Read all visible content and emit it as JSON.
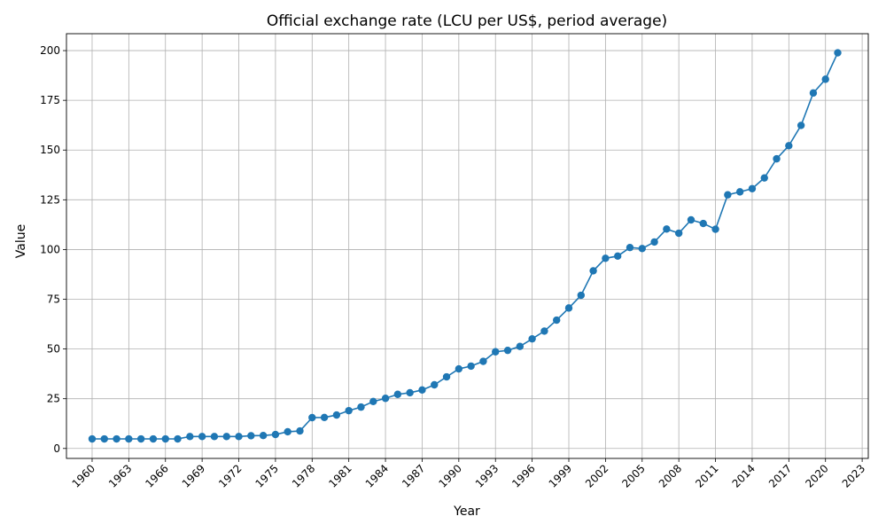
{
  "chart_data": {
    "type": "line",
    "title": "Official exchange rate (LCU per US$, period average)",
    "xlabel": "Year",
    "ylabel": "Value",
    "xlim": [
      1957.9,
      2023.5
    ],
    "ylim": [
      -5,
      208.5
    ],
    "grid": true,
    "color": "#1f77b4",
    "x_ticks": [
      1960,
      1963,
      1966,
      1969,
      1972,
      1975,
      1978,
      1981,
      1984,
      1987,
      1990,
      1993,
      1996,
      1999,
      2002,
      2005,
      2008,
      2011,
      2014,
      2017,
      2020,
      2023
    ],
    "y_ticks": [
      0,
      25,
      50,
      75,
      100,
      125,
      150,
      175,
      200
    ],
    "series": [
      {
        "x": [
          1960,
          1961,
          1962,
          1963,
          1964,
          1965,
          1966,
          1967,
          1968,
          1969,
          1970,
          1971,
          1972,
          1973,
          1974,
          1975,
          1976,
          1977,
          1978,
          1979,
          1980,
          1981,
          1982,
          1983,
          1984,
          1985,
          1986,
          1987,
          1988,
          1989,
          1990,
          1991,
          1992,
          1993,
          1994,
          1995,
          1996,
          1997,
          1998,
          1999,
          2000,
          2001,
          2002,
          2003,
          2004,
          2005,
          2006,
          2007,
          2008,
          2009,
          2010,
          2011,
          2012,
          2013,
          2014,
          2015,
          2016,
          2017,
          2018,
          2019,
          2020,
          2021
        ],
        "values": [
          4.8,
          4.8,
          4.8,
          4.8,
          4.8,
          4.8,
          4.8,
          4.8,
          6.0,
          6.0,
          6.0,
          6.0,
          6.0,
          6.4,
          6.5,
          7.0,
          8.4,
          8.8,
          15.5,
          15.6,
          16.8,
          19.0,
          20.8,
          23.6,
          25.2,
          27.2,
          28.0,
          29.4,
          32.0,
          36.0,
          40.0,
          41.4,
          43.8,
          48.6,
          49.3,
          51.3,
          55.1,
          59.0,
          64.5,
          70.6,
          77.0,
          89.3,
          95.6,
          96.7,
          101.0,
          100.5,
          103.8,
          110.3,
          108.2,
          114.9,
          113.1,
          110.2,
          127.5,
          129.0,
          130.6,
          136.0,
          145.6,
          152.2,
          162.4,
          178.7,
          185.6,
          198.9
        ]
      }
    ]
  }
}
